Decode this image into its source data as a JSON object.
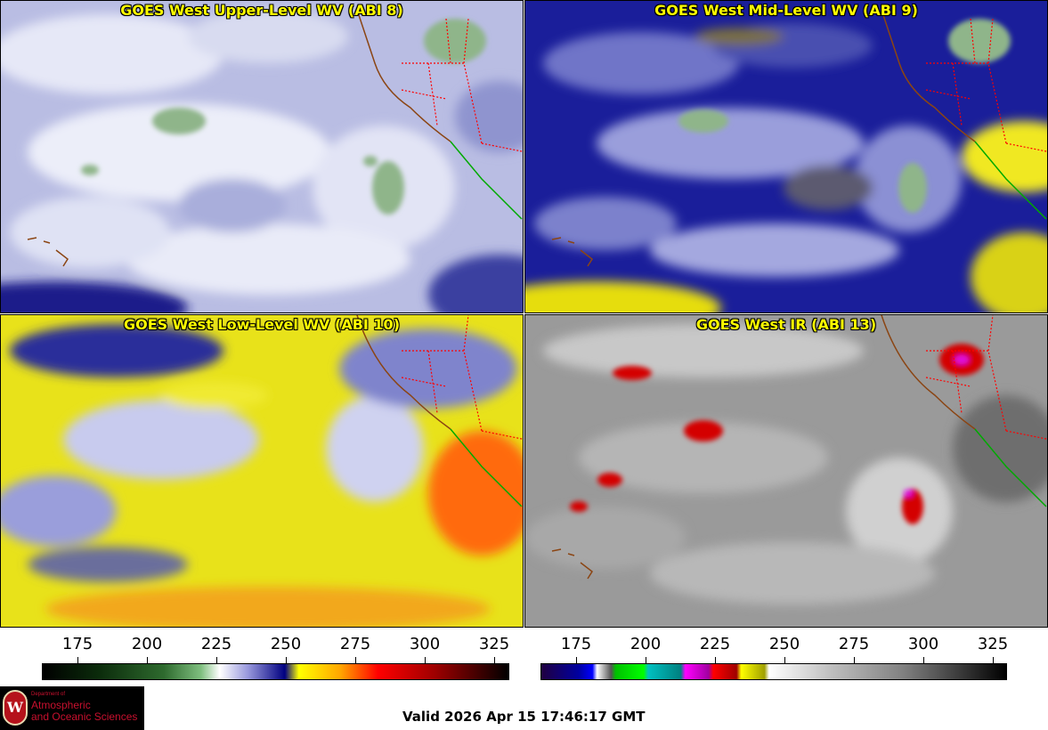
{
  "panels": [
    {
      "title": "GOES West Upper-Level WV (ABI 8)"
    },
    {
      "title": "GOES West Mid-Level WV (ABI 9)"
    },
    {
      "title": "GOES West Low-Level WV (ABI 10)"
    },
    {
      "title": "GOES West IR (ABI 13)"
    }
  ],
  "colorbars": {
    "wv": {
      "ticks": [
        "175",
        "200",
        "225",
        "250",
        "275",
        "300",
        "325"
      ]
    },
    "ir": {
      "ticks": [
        "175",
        "200",
        "225",
        "250",
        "275",
        "300",
        "325"
      ]
    }
  },
  "logo": {
    "seal_letter": "W",
    "dept_line1": "Department of",
    "name_line1": "Atmospheric",
    "name_line2": "and Oceanic Sciences"
  },
  "footer": {
    "valid_time": "Valid 2026 Apr 15 17:46:17 GMT"
  },
  "colors": {
    "title_text": "#ffff00",
    "state_border": "#ff0000",
    "coastline": "#8b4513",
    "mexico_border": "#00aa00"
  }
}
